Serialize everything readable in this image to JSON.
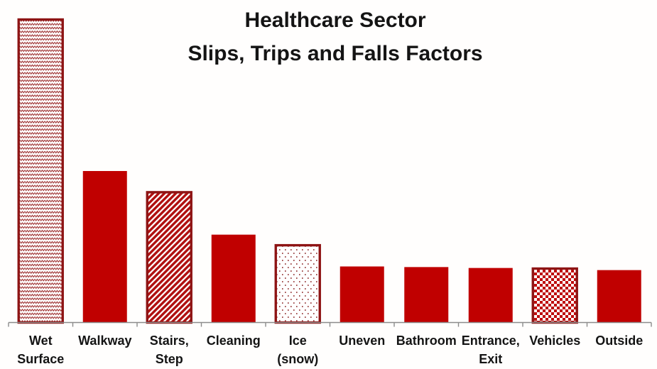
{
  "title": {
    "line1": "Healthcare Sector",
    "line2": "Slips, Trips and Falls Factors"
  },
  "chart_data": {
    "type": "bar",
    "title": "Healthcare Sector Slips, Trips and Falls Factors",
    "categories": [
      "Wet Surface",
      "Walkway",
      "Stairs, Step",
      "Cleaning",
      "Ice (snow)",
      "Uneven",
      "Bathroom",
      "Entrance, Exit",
      "Vehicles",
      "Outside"
    ],
    "category_lines": [
      [
        "Wet",
        "Surface"
      ],
      [
        "Walkway"
      ],
      [
        "Stairs,",
        "Step"
      ],
      [
        "Cleaning"
      ],
      [
        "Ice",
        "(snow)"
      ],
      [
        "Uneven"
      ],
      [
        "Bathroom"
      ],
      [
        "Entrance,",
        "Exit"
      ],
      [
        "Vehicles"
      ],
      [
        "Outside"
      ]
    ],
    "values": [
      100,
      50,
      43,
      29,
      25.5,
      18.5,
      18.3,
      18,
      17.8,
      17.3
    ],
    "values_note": "relative bar heights, tallest bar = 100; chart shows no y-axis or value labels",
    "bar_patterns": [
      "wave",
      "solid",
      "diagonal-stripes",
      "solid",
      "dots",
      "solid",
      "solid",
      "solid",
      "checkerboard",
      "solid"
    ],
    "bar_outlined": [
      true,
      false,
      true,
      false,
      true,
      false,
      false,
      false,
      true,
      false
    ],
    "xlabel": "",
    "ylabel": "",
    "grid": false,
    "legend": false,
    "colors": {
      "solid_fill": "#C00000",
      "outline": "#8E1414",
      "wave_ink": "#9C2B2B",
      "stripe_ink": "#B00F0F",
      "dot_ink": "#8B2323",
      "checker_ink": "#BE0D0D",
      "pattern_background": "#FFFFFF",
      "axis_line": "#8C8C8C",
      "title_text": "#141414",
      "label_text": "#141414",
      "background": "#FFFEFD"
    }
  }
}
